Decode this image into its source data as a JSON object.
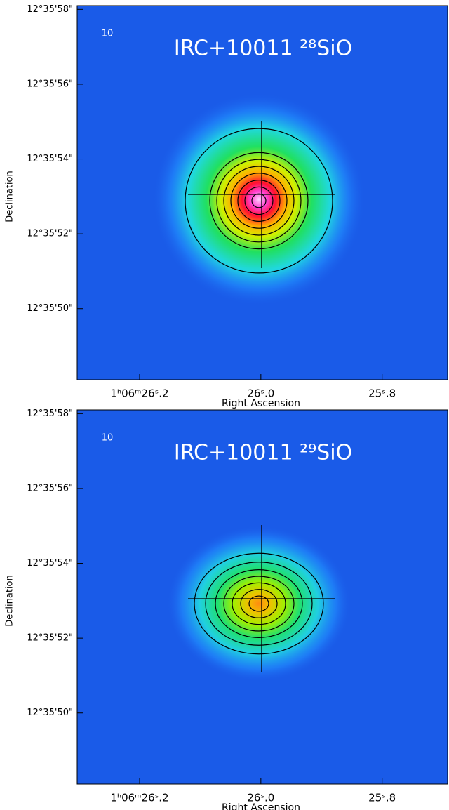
{
  "chart_data": [
    {
      "type": "image",
      "title": "IRC+10011 ²⁸SiO",
      "annotation": "10",
      "x_label": "Right Ascension",
      "y_label": "Declination",
      "xlim": [
        26.303,
        25.692
      ],
      "ylim": [
        48.1,
        58.1
      ],
      "xticks": [
        {
          "value": 26.2,
          "label": "1ʰ06ᵐ26ˢ.2"
        },
        {
          "value": 26.0,
          "label": "26ˢ.0"
        },
        {
          "value": 25.8,
          "label": "25ˢ.8"
        }
      ],
      "yticks": [
        {
          "value": 50,
          "label": "12°35'50\""
        },
        {
          "value": 52,
          "label": "12°35'52\""
        },
        {
          "value": 54,
          "label": "12°35'54\""
        },
        {
          "value": 56,
          "label": "12°35'56\""
        },
        {
          "value": 58,
          "label": "12°35'58\""
        }
      ]
    },
    {
      "type": "image",
      "title": "IRC+10011 ²⁹SiO",
      "annotation": "10",
      "x_label": "Right Ascension",
      "y_label": "Declination",
      "xlim": [
        26.303,
        25.692
      ],
      "ylim": [
        48.1,
        58.1
      ],
      "xticks": [
        {
          "value": 26.2,
          "label": "1ʰ06ᵐ26ˢ.2"
        },
        {
          "value": 26.0,
          "label": "26ˢ.0"
        },
        {
          "value": 25.8,
          "label": "25ˢ.8"
        }
      ],
      "yticks": [
        {
          "value": 50,
          "label": "12°35'50\""
        },
        {
          "value": 52,
          "label": "12°35'52\""
        },
        {
          "value": 54,
          "label": "12°35'54\""
        },
        {
          "value": 56,
          "label": "12°35'56\""
        },
        {
          "value": 58,
          "label": "12°35'58\""
        }
      ]
    }
  ]
}
